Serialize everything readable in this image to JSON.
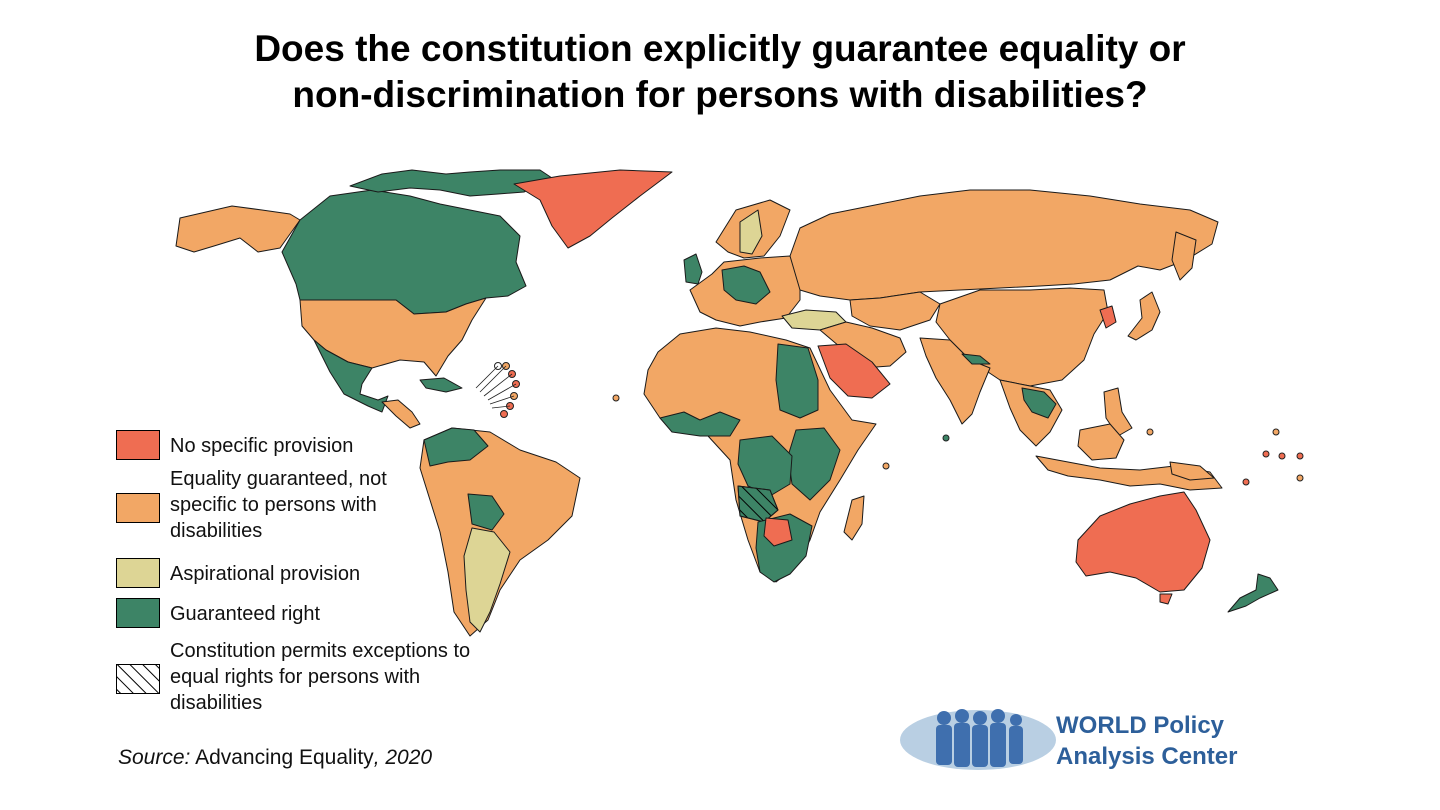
{
  "title": {
    "line1": "Does the constitution explicitly guarantee equality or",
    "line2": "non-discrimination for persons with disabilities?"
  },
  "colors": {
    "no_provision": "#ef6d52",
    "equality_not_specific": "#f2a765",
    "aspirational": "#ddd595",
    "guaranteed": "#3d8466",
    "logo_blue": "#2d5f9a"
  },
  "legend": {
    "items": [
      {
        "key": "no_provision",
        "label": "No specific provision"
      },
      {
        "key": "equality_not_specific",
        "label": "Equality guaranteed, not specific to persons with disabilities"
      },
      {
        "key": "aspirational",
        "label": "Aspirational provision"
      },
      {
        "key": "guaranteed",
        "label": "Guaranteed right"
      },
      {
        "key": "exceptions",
        "label": "Constitution permits exceptions to equal rights for persons with disabilities"
      }
    ]
  },
  "source": {
    "prefix": "Source:",
    "text": "Advancing Equality",
    "year": ", 2020"
  },
  "logo": {
    "line1": "WORLD Policy",
    "line2": "Analysis Center"
  }
}
